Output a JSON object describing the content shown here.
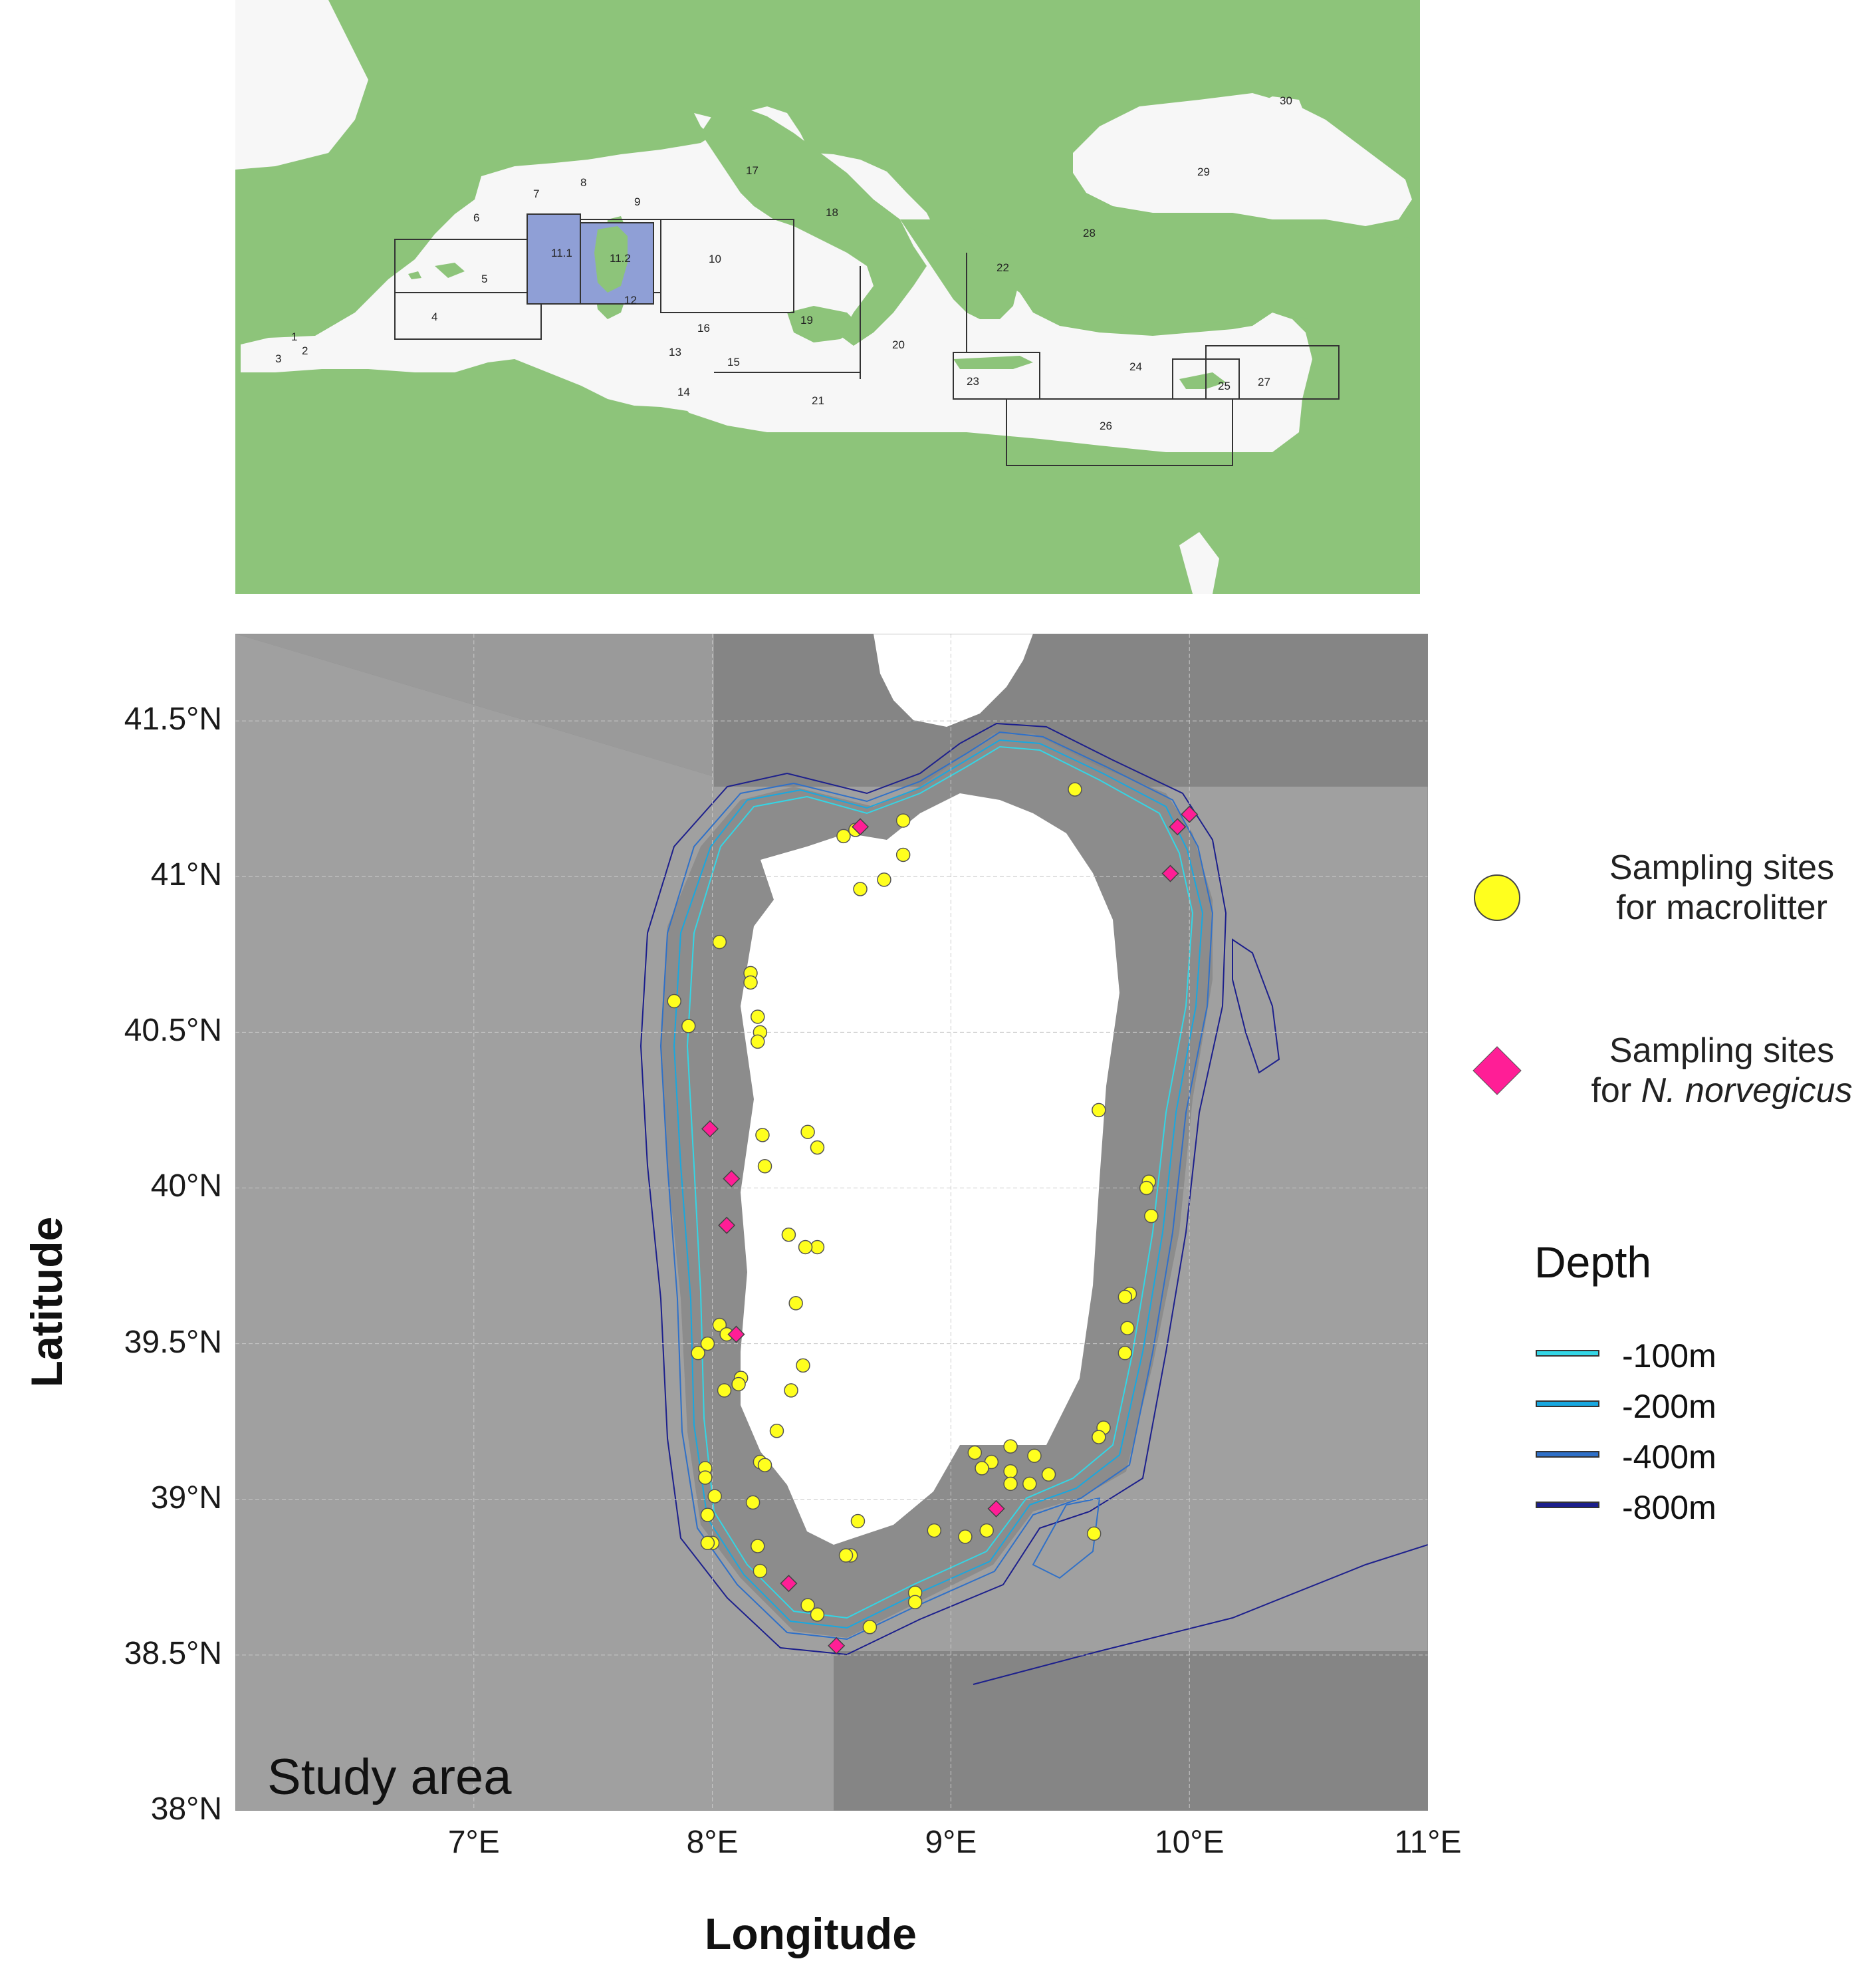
{
  "overview_map": {
    "gsa_labels": [
      "1",
      "2",
      "3",
      "4",
      "5",
      "6",
      "7",
      "8",
      "9",
      "10",
      "11.1",
      "11.2",
      "12",
      "13",
      "14",
      "15",
      "16",
      "17",
      "18",
      "19",
      "20",
      "21",
      "22",
      "23",
      "24",
      "25",
      "26",
      "27",
      "28",
      "29",
      "30"
    ],
    "highlighted_areas": [
      "11.1",
      "11.2"
    ],
    "colors": {
      "land": "#8dc47a",
      "sea": "#f7f7f7",
      "highlight": "#8f9fd6",
      "border": "#333333"
    }
  },
  "study_map": {
    "inset_label": "Study area",
    "x_ticks": [
      "7°E",
      "8°E",
      "9°E",
      "10°E",
      "11°E"
    ],
    "y_ticks": [
      "41.5°N",
      "41°N",
      "40.5°N",
      "40°N",
      "39.5°N",
      "39°N",
      "38.5°N",
      "38°N"
    ],
    "x_axis_title": "Longitude",
    "y_axis_title": "Latitude",
    "lon_range": [
      6.0,
      11.0
    ],
    "lat_range": [
      38.0,
      41.78
    ],
    "colors": {
      "background": "#a0a0a0",
      "darker_zone": "#858585",
      "shelf": "#8a8a8a",
      "land": "#ffffff",
      "grid": "#c8c8c8"
    },
    "macrolitter_sites": [
      [
        9.52,
        41.28
      ],
      [
        8.55,
        41.13
      ],
      [
        8.6,
        41.15
      ],
      [
        8.8,
        41.18
      ],
      [
        8.8,
        41.07
      ],
      [
        8.72,
        40.99
      ],
      [
        8.62,
        40.96
      ],
      [
        8.03,
        40.79
      ],
      [
        8.16,
        40.69
      ],
      [
        8.16,
        40.66
      ],
      [
        7.84,
        40.6
      ],
      [
        8.19,
        40.55
      ],
      [
        7.9,
        40.52
      ],
      [
        8.2,
        40.5
      ],
      [
        8.19,
        40.47
      ],
      [
        9.62,
        40.25
      ],
      [
        8.21,
        40.17
      ],
      [
        8.4,
        40.18
      ],
      [
        8.44,
        40.13
      ],
      [
        8.22,
        40.07
      ],
      [
        9.83,
        40.02
      ],
      [
        9.82,
        40.0
      ],
      [
        9.84,
        39.91
      ],
      [
        8.32,
        39.85
      ],
      [
        8.44,
        39.81
      ],
      [
        8.39,
        39.81
      ],
      [
        9.75,
        39.66
      ],
      [
        9.73,
        39.65
      ],
      [
        8.35,
        39.63
      ],
      [
        8.03,
        39.56
      ],
      [
        9.74,
        39.55
      ],
      [
        8.06,
        39.53
      ],
      [
        7.98,
        39.5
      ],
      [
        7.94,
        39.47
      ],
      [
        9.73,
        39.47
      ],
      [
        8.38,
        39.43
      ],
      [
        8.12,
        39.39
      ],
      [
        8.11,
        39.37
      ],
      [
        8.05,
        39.35
      ],
      [
        8.33,
        39.35
      ],
      [
        9.64,
        39.23
      ],
      [
        9.62,
        39.2
      ],
      [
        8.27,
        39.22
      ],
      [
        9.25,
        39.17
      ],
      [
        9.1,
        39.15
      ],
      [
        9.35,
        39.14
      ],
      [
        8.2,
        39.12
      ],
      [
        8.22,
        39.11
      ],
      [
        9.17,
        39.12
      ],
      [
        7.97,
        39.1
      ],
      [
        9.13,
        39.1
      ],
      [
        9.25,
        39.09
      ],
      [
        7.97,
        39.07
      ],
      [
        9.41,
        39.08
      ],
      [
        9.25,
        39.05
      ],
      [
        9.33,
        39.05
      ],
      [
        8.01,
        39.01
      ],
      [
        8.17,
        38.99
      ],
      [
        7.98,
        38.95
      ],
      [
        8.61,
        38.93
      ],
      [
        8.93,
        38.9
      ],
      [
        9.15,
        38.9
      ],
      [
        9.6,
        38.89
      ],
      [
        9.06,
        38.88
      ],
      [
        8.0,
        38.86
      ],
      [
        7.98,
        38.86
      ],
      [
        8.19,
        38.85
      ],
      [
        8.58,
        38.82
      ],
      [
        8.56,
        38.82
      ],
      [
        8.2,
        38.77
      ],
      [
        8.85,
        38.7
      ],
      [
        8.85,
        38.67
      ],
      [
        8.4,
        38.66
      ],
      [
        8.44,
        38.63
      ],
      [
        8.66,
        38.59
      ]
    ],
    "nephrops_sites": [
      [
        8.62,
        41.16
      ],
      [
        9.95,
        41.16
      ],
      [
        10.0,
        41.2
      ],
      [
        9.92,
        41.01
      ],
      [
        7.99,
        40.19
      ],
      [
        8.08,
        40.03
      ],
      [
        8.06,
        39.88
      ],
      [
        8.1,
        39.53
      ],
      [
        9.19,
        38.97
      ],
      [
        8.32,
        38.73
      ],
      [
        8.52,
        38.53
      ]
    ]
  },
  "legend": {
    "macrolitter_label_line1": "Sampling sites",
    "macrolitter_label_line2": "for macrolitter",
    "nephrops_label_line1": "Sampling sites",
    "nephrops_label_line2_prefix": "for ",
    "nephrops_label_line2_species": "N. norvegicus",
    "macrolitter_color": "#ffff1e",
    "nephrops_color": "#ff1e96",
    "depth_title": "Depth",
    "depth_items": [
      {
        "label": "-100m",
        "color": "#33d6e6"
      },
      {
        "label": "-200m",
        "color": "#18a8e0"
      },
      {
        "label": "-400m",
        "color": "#2f70c8"
      },
      {
        "label": "-800m",
        "color": "#1c1f8c"
      }
    ]
  }
}
